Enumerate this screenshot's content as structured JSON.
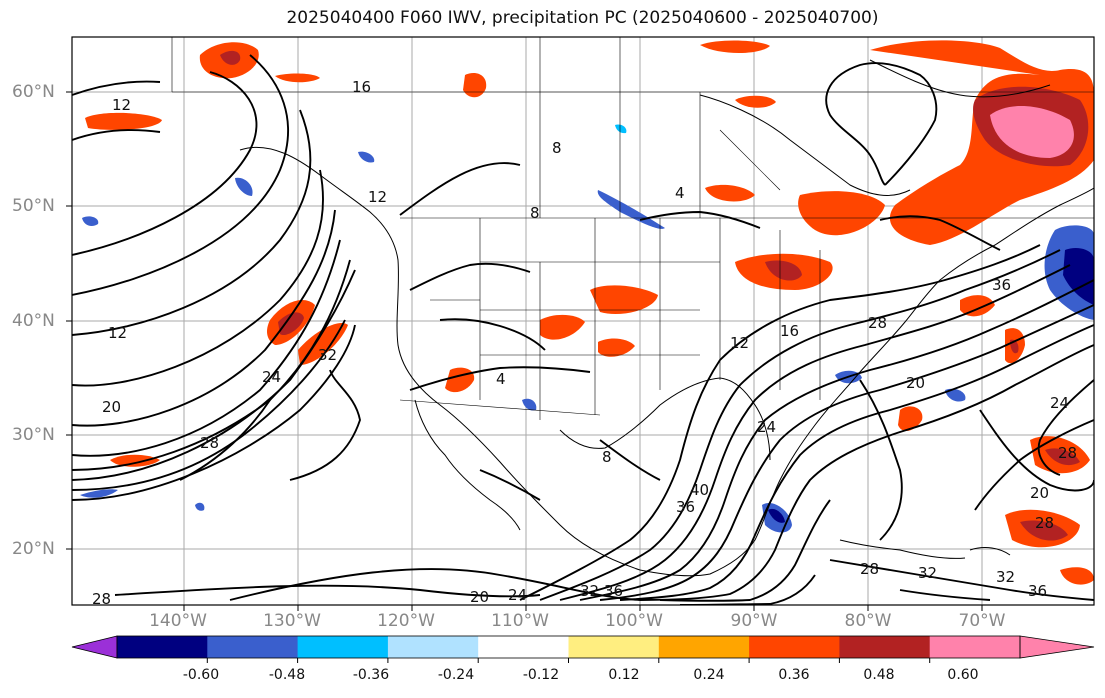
{
  "title": "2025040400 F060 IWV, precipitation PC (2025040600 - 2025040700)",
  "lat_labels": [
    "60°N",
    "50°N",
    "40°N",
    "30°N",
    "20°N"
  ],
  "lon_labels": [
    "140°W",
    "130°W",
    "120°W",
    "110°W",
    "100°W",
    "90°W",
    "80°W",
    "70°W"
  ],
  "colorbar": {
    "ticks": [
      "-0.60",
      "-0.48",
      "-0.36",
      "-0.24",
      "-0.12",
      "0.12",
      "0.24",
      "0.36",
      "0.48",
      "0.60"
    ],
    "colors": [
      "#9b30d8",
      "#000080",
      "#3a5fcd",
      "#00bfff",
      "#b0e2ff",
      "#ffffff",
      "#ffee80",
      "#ffa500",
      "#ff4500",
      "#b22222",
      "#ff82ab",
      "#ff82ab"
    ]
  },
  "contour_labels": [
    "12",
    "8",
    "16",
    "12",
    "8",
    "4",
    "12",
    "24",
    "32",
    "20",
    "28",
    "4",
    "8",
    "12",
    "16",
    "36",
    "28",
    "24",
    "40",
    "36",
    "20",
    "24",
    "28",
    "32",
    "36",
    "28",
    "20",
    "28",
    "32",
    "24",
    "20",
    "28",
    "36",
    "32"
  ]
}
